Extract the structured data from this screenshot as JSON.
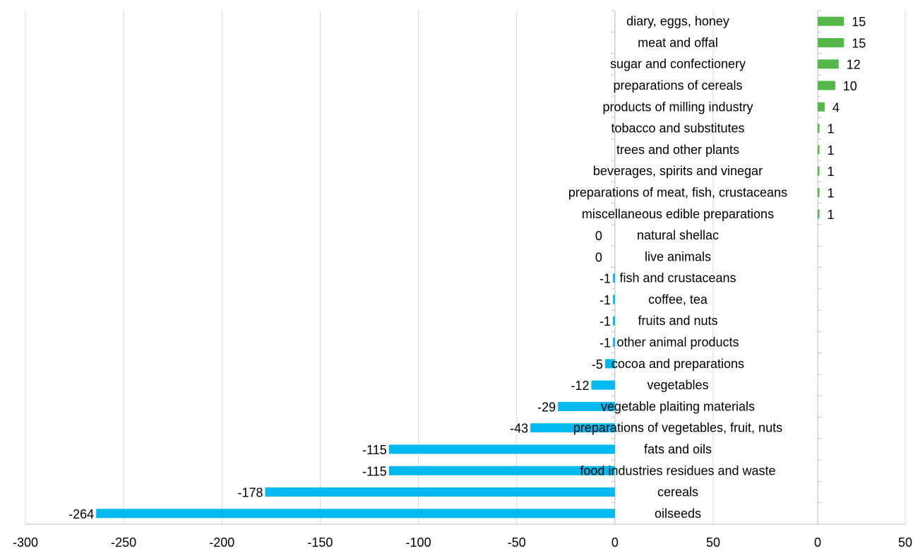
{
  "chart_data": {
    "type": "bar",
    "orientation": "horizontal",
    "title": "",
    "xlabel": "",
    "ylabel": "",
    "grid": true,
    "legend": "none",
    "colors": {
      "negative": "#00B9EF",
      "positive": "#53B848",
      "grid": "#D9D9D9",
      "axis": "#BFBFBF"
    },
    "categories": [
      "diary, eggs, honey",
      "meat and offal",
      "sugar and confectionery",
      "preparations of cereals",
      "products of milling industry",
      "tobacco and substitutes",
      "trees and other plants",
      "beverages, spirits and vinegar",
      "preparations of meat, fish, crustaceans",
      "miscellaneous edible preparations",
      "natural shellac",
      "live animals",
      "fish and crustaceans",
      "coffee, tea",
      "fruits and nuts",
      "other animal products",
      "cocoa and preparations",
      "vegetables",
      "vegetable plaiting materials",
      "preparations of vegetables, fruit, nuts",
      "fats and oils",
      "food industries residues and waste",
      "cereals",
      "oilseeds"
    ],
    "values": [
      15,
      15,
      12,
      10,
      4,
      1,
      1,
      1,
      1,
      1,
      0,
      0,
      -1,
      -1,
      -1,
      -1,
      -5,
      -12,
      -29,
      -43,
      -115,
      -115,
      -178,
      -264
    ],
    "data_labels": [
      "15",
      "15",
      "12",
      "10",
      "4",
      "1",
      "1",
      "1",
      "1",
      "1",
      "0",
      "0",
      "-1",
      "-1",
      "-1",
      "-1",
      "-5",
      "-12",
      "-29",
      "-43",
      "-115",
      "-115",
      "-178",
      "-264"
    ],
    "negative_axis": {
      "xlim": [
        -300,
        50
      ],
      "ticks": [
        -300,
        -250,
        -200,
        -150,
        -100,
        -50,
        0,
        50
      ],
      "tick_labels": [
        "-300",
        "-250",
        "-200",
        "-150",
        "-100",
        "-50",
        "0",
        "50"
      ]
    },
    "positive_axis": {
      "xlim": [
        0,
        50
      ],
      "ticks": [
        0,
        50
      ],
      "tick_labels": [
        "0",
        "50"
      ]
    }
  }
}
